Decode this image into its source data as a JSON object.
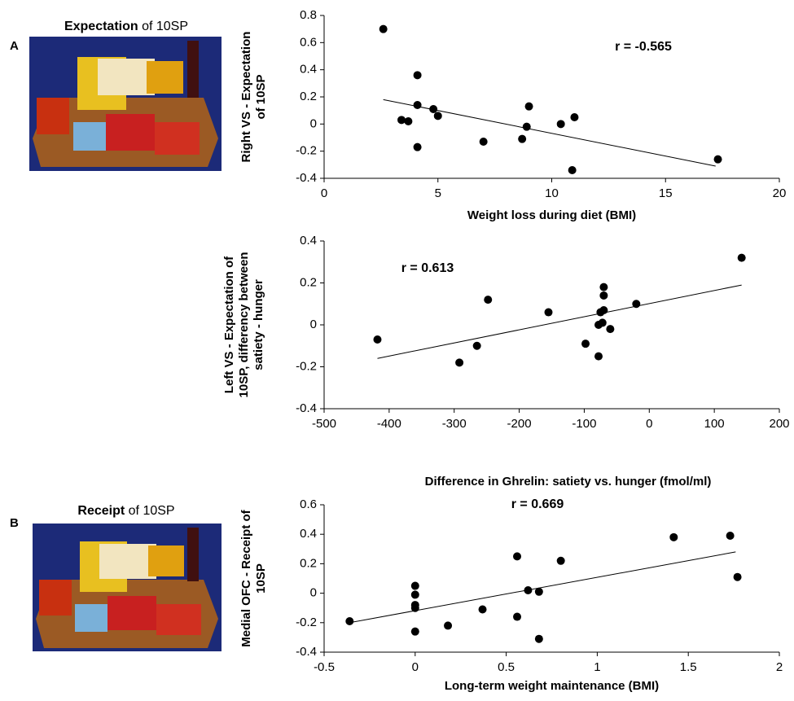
{
  "panels": [
    {
      "label": "A",
      "caption_bold": "Expectation",
      "caption_rest": "of 10SP"
    },
    {
      "label": "B",
      "caption_bold": "Receipt",
      "caption_rest": "of 10SP"
    }
  ],
  "chart_data": [
    {
      "type": "scatter",
      "annotation": "r = -0.565",
      "x_label": "Weight loss during diet (BMI)",
      "y_label": [
        "Right VS - Expectation",
        "of 10SP"
      ],
      "x": [
        2.6,
        4.1,
        4.1,
        3.4,
        3.7,
        4.1,
        4.8,
        5.0,
        7.0,
        9.0,
        8.9,
        8.7,
        10.4,
        11.0,
        10.9,
        17.3
      ],
      "series": [
        {
          "color": "#000000",
          "values": [
            0.7,
            0.36,
            0.14,
            0.03,
            0.02,
            -0.17,
            0.11,
            0.06,
            -0.13,
            0.13,
            -0.02,
            -0.11,
            0,
            0.05,
            -0.34,
            -0.26
          ]
        }
      ],
      "trend_line": {
        "x": [
          2.6,
          17.2
        ],
        "y": [
          0.18,
          -0.31
        ]
      },
      "xlim": [
        0,
        20
      ],
      "xticks": [
        0,
        5,
        10,
        15,
        20
      ],
      "ylim": [
        -0.4,
        0.8
      ],
      "yticks": [
        -0.4,
        -0.2,
        0,
        0.2,
        0.4,
        0.6,
        0.8
      ]
    },
    {
      "type": "scatter",
      "annotation": "r = 0.613",
      "x_label": "Difference in Ghrelin: satiety vs. hunger (fmol/ml)",
      "y_label": [
        "Left VS - Expectation of",
        "10SP, differency between",
        "satiety - hunger"
      ],
      "x": [
        -418,
        -292,
        -265,
        -248,
        -155,
        -98,
        -78,
        -75,
        -70,
        -70,
        -70,
        -78,
        -72,
        -60,
        -20,
        142
      ],
      "series": [
        {
          "color": "#000000",
          "values": [
            -0.07,
            -0.18,
            -0.1,
            0.12,
            0.06,
            -0.09,
            -0.15,
            0.06,
            0.18,
            0.14,
            0.07,
            0,
            0.01,
            -0.02,
            0.1,
            0.32
          ]
        }
      ],
      "trend_line": {
        "x": [
          -418,
          142
        ],
        "y": [
          -0.16,
          0.19
        ]
      },
      "xlim": [
        -500,
        200
      ],
      "xticks": [
        -500,
        -400,
        -300,
        -200,
        -100,
        0,
        100,
        200
      ],
      "ylim": [
        -0.4,
        0.4
      ],
      "yticks": [
        -0.4,
        -0.2,
        0,
        0.2,
        0.4
      ]
    },
    {
      "type": "scatter",
      "annotation": "r = 0.669",
      "x_label": "Long-term weight maintenance (BMI)",
      "y_label": [
        "Medial OFC - Receipt of",
        "10SP"
      ],
      "x": [
        -0.36,
        0,
        0,
        0,
        0,
        0,
        0.18,
        0.37,
        0.56,
        0.56,
        0.62,
        0.68,
        0.68,
        0.8,
        1.42,
        1.73,
        1.77
      ],
      "series": [
        {
          "color": "#000000",
          "values": [
            -0.19,
            0.05,
            -0.01,
            -0.08,
            -0.1,
            -0.26,
            -0.22,
            -0.11,
            0.25,
            -0.16,
            0.02,
            0.01,
            -0.31,
            0.22,
            0.38,
            0.39,
            0.11
          ]
        }
      ],
      "trend_line": {
        "x": [
          -0.36,
          1.76
        ],
        "y": [
          -0.2,
          0.28
        ]
      },
      "xlim": [
        -0.5,
        2
      ],
      "xticks": [
        -0.5,
        0,
        0.5,
        1,
        1.5,
        2
      ],
      "ylim": [
        -0.4,
        0.6
      ],
      "yticks": [
        -0.4,
        -0.2,
        0,
        0.2,
        0.4,
        0.6
      ]
    }
  ]
}
